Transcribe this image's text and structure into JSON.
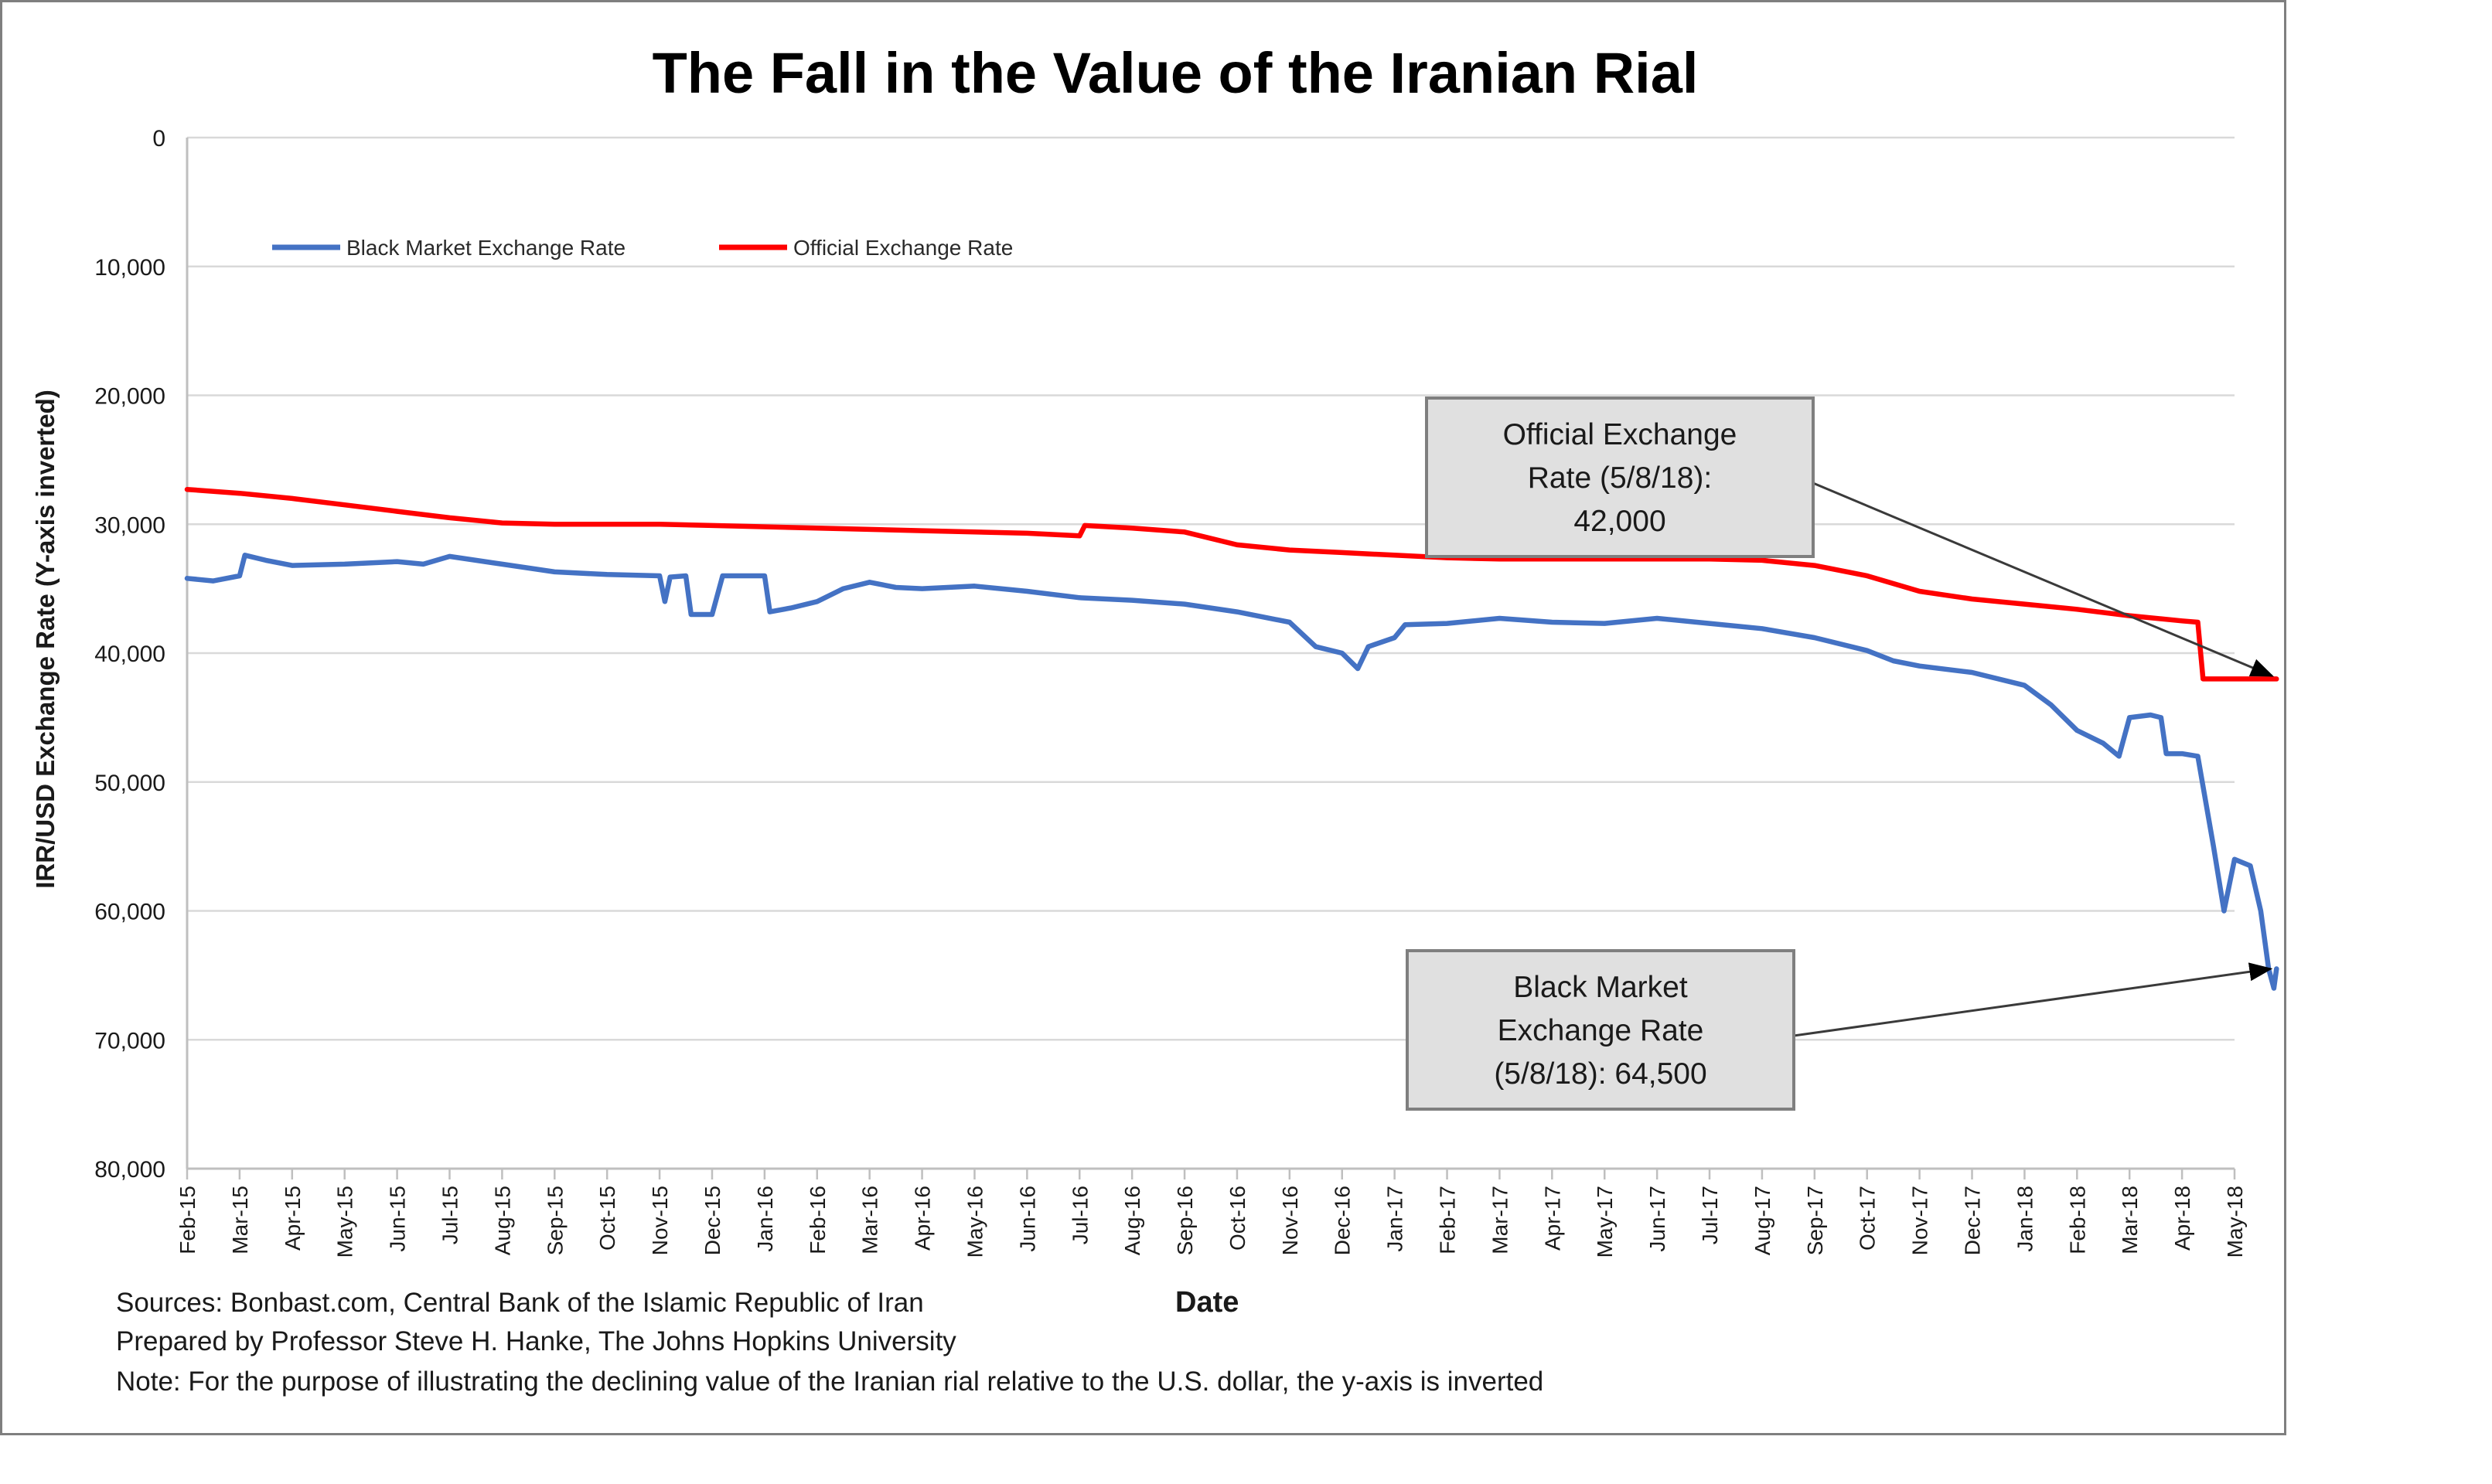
{
  "chart_data": {
    "type": "line",
    "title": "The Fall in the Value of the Iranian Rial",
    "xlabel": "Date",
    "ylabel": "IRR/USD Exchange Rate (Y-axis inverted)",
    "y_inverted": true,
    "ylim": [
      0,
      80000
    ],
    "yticks": [
      0,
      10000,
      20000,
      30000,
      40000,
      50000,
      60000,
      70000,
      80000
    ],
    "ytick_labels": [
      "0",
      "10,000",
      "20,000",
      "30,000",
      "40,000",
      "50,000",
      "60,000",
      "70,000",
      "80,000"
    ],
    "x_tick_labels": [
      "Feb-15",
      "Mar-15",
      "Apr-15",
      "May-15",
      "Jun-15",
      "Jul-15",
      "Aug-15",
      "Sep-15",
      "Oct-15",
      "Nov-15",
      "Dec-15",
      "Jan-16",
      "Feb-16",
      "Mar-16",
      "Apr-16",
      "May-16",
      "Jun-16",
      "Jul-16",
      "Aug-16",
      "Sep-16",
      "Oct-16",
      "Nov-16",
      "Dec-16",
      "Jan-17",
      "Feb-17",
      "Mar-17",
      "Apr-17",
      "May-17",
      "Jun-17",
      "Jul-17",
      "Aug-17",
      "Sep-17",
      "Oct-17",
      "Nov-17",
      "Dec-17",
      "Jan-18",
      "Feb-18",
      "Mar-18",
      "Apr-18",
      "May-18"
    ],
    "legend_position": "top-left",
    "grid": true,
    "series": [
      {
        "name": "Black Market Exchange Rate",
        "color": "#4472c4",
        "points": [
          [
            0,
            34200
          ],
          [
            0.5,
            34400
          ],
          [
            1,
            34000
          ],
          [
            1.1,
            32400
          ],
          [
            1.5,
            32800
          ],
          [
            2,
            33200
          ],
          [
            3,
            33100
          ],
          [
            4,
            32900
          ],
          [
            4.5,
            33100
          ],
          [
            5,
            32500
          ],
          [
            5.5,
            32800
          ],
          [
            6,
            33100
          ],
          [
            7,
            33700
          ],
          [
            8,
            33900
          ],
          [
            9,
            34000
          ],
          [
            9.1,
            36000
          ],
          [
            9.2,
            34100
          ],
          [
            9.5,
            34000
          ],
          [
            9.6,
            37000
          ],
          [
            10,
            37000
          ],
          [
            10.2,
            34000
          ],
          [
            11,
            34000
          ],
          [
            11.1,
            36800
          ],
          [
            11.5,
            36500
          ],
          [
            12,
            36000
          ],
          [
            12.5,
            35000
          ],
          [
            13,
            34500
          ],
          [
            13.5,
            34900
          ],
          [
            14,
            35000
          ],
          [
            15,
            34800
          ],
          [
            16,
            35200
          ],
          [
            17,
            35700
          ],
          [
            18,
            35900
          ],
          [
            19,
            36200
          ],
          [
            20,
            36800
          ],
          [
            21,
            37600
          ],
          [
            21.5,
            39500
          ],
          [
            22,
            40000
          ],
          [
            22.3,
            41200
          ],
          [
            22.5,
            39500
          ],
          [
            23,
            38800
          ],
          [
            23.2,
            37800
          ],
          [
            24,
            37700
          ],
          [
            25,
            37300
          ],
          [
            26,
            37600
          ],
          [
            27,
            37700
          ],
          [
            28,
            37300
          ],
          [
            29,
            37700
          ],
          [
            30,
            38100
          ],
          [
            31,
            38800
          ],
          [
            32,
            39800
          ],
          [
            32.5,
            40600
          ],
          [
            33,
            41000
          ],
          [
            34,
            41500
          ],
          [
            35,
            42500
          ],
          [
            35.5,
            44000
          ],
          [
            36,
            46000
          ],
          [
            36.5,
            47000
          ],
          [
            36.8,
            48000
          ],
          [
            37,
            45000
          ],
          [
            37.4,
            44800
          ],
          [
            37.6,
            45000
          ],
          [
            37.7,
            47800
          ],
          [
            38,
            47800
          ],
          [
            38.3,
            48000
          ],
          [
            38.6,
            55000
          ],
          [
            38.8,
            60000
          ],
          [
            39,
            56000
          ],
          [
            39.3,
            56500
          ],
          [
            39.5,
            60000
          ],
          [
            39.65,
            64500
          ],
          [
            39.75,
            66000
          ],
          [
            39.8,
            64500
          ]
        ]
      },
      {
        "name": "Official Exchange Rate",
        "color": "#ff0000",
        "points": [
          [
            0,
            27300
          ],
          [
            1,
            27600
          ],
          [
            2,
            28000
          ],
          [
            3,
            28500
          ],
          [
            4,
            29000
          ],
          [
            5,
            29500
          ],
          [
            6,
            29900
          ],
          [
            7,
            30000
          ],
          [
            9,
            30000
          ],
          [
            10,
            30100
          ],
          [
            12,
            30300
          ],
          [
            14,
            30500
          ],
          [
            16,
            30700
          ],
          [
            17,
            30900
          ],
          [
            17.1,
            30100
          ],
          [
            18,
            30300
          ],
          [
            19,
            30600
          ],
          [
            20,
            31600
          ],
          [
            21,
            32000
          ],
          [
            22,
            32200
          ],
          [
            23,
            32400
          ],
          [
            24,
            32600
          ],
          [
            25,
            32700
          ],
          [
            26,
            32700
          ],
          [
            27,
            32700
          ],
          [
            28,
            32700
          ],
          [
            29,
            32700
          ],
          [
            30,
            32800
          ],
          [
            31,
            33200
          ],
          [
            32,
            34000
          ],
          [
            33,
            35200
          ],
          [
            34,
            35800
          ],
          [
            35,
            36200
          ],
          [
            36,
            36600
          ],
          [
            37,
            37100
          ],
          [
            38,
            37500
          ],
          [
            38.3,
            37600
          ],
          [
            38.4,
            42000
          ],
          [
            39.8,
            42000
          ]
        ]
      }
    ],
    "annotations": [
      {
        "id": "official",
        "lines": [
          "Official Exchange",
          "Rate (5/8/18):",
          "42,000"
        ],
        "value": 42000
      },
      {
        "id": "black",
        "lines": [
          "Black Market",
          "Exchange Rate",
          "(5/8/18): 64,500"
        ],
        "value": 64500
      }
    ]
  },
  "notes": {
    "sources": "Sources: Bonbast.com, Central Bank of the Islamic Republic of Iran",
    "prepared": "Prepared by Professor Steve H. Hanke, The Johns Hopkins University",
    "note": "Note: For the purpose of illustrating the declining value of the Iranian rial relative to the U.S. dollar, the y-axis is inverted"
  }
}
